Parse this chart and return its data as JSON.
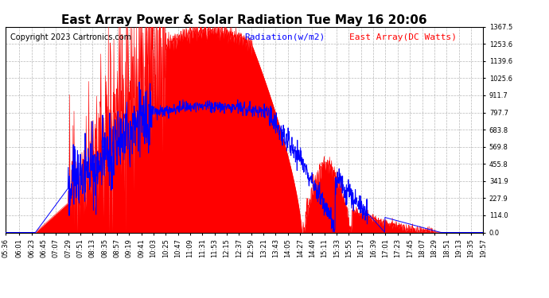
{
  "title": "East Array Power & Solar Radiation Tue May 16 20:06",
  "copyright": "Copyright 2023 Cartronics.com",
  "legend_radiation": "Radiation(w/m2)",
  "legend_east": "East Array(DC Watts)",
  "ylabel_right_ticks": [
    0.0,
    114.0,
    227.9,
    341.9,
    455.8,
    569.8,
    683.8,
    797.7,
    911.7,
    1025.6,
    1139.6,
    1253.6,
    1367.5
  ],
  "ymax": 1367.5,
  "ymin": 0.0,
  "x_labels": [
    "05:36",
    "06:01",
    "06:23",
    "06:45",
    "07:07",
    "07:29",
    "07:51",
    "08:13",
    "08:35",
    "08:57",
    "09:19",
    "09:41",
    "10:03",
    "10:25",
    "10:47",
    "11:09",
    "11:31",
    "11:53",
    "12:15",
    "12:37",
    "12:59",
    "13:21",
    "13:43",
    "14:05",
    "14:27",
    "14:49",
    "15:11",
    "15:33",
    "15:55",
    "16:17",
    "16:39",
    "17:01",
    "17:23",
    "17:45",
    "18:07",
    "18:29",
    "18:51",
    "19:13",
    "19:35",
    "19:57"
  ],
  "radiation_color": "#ff0000",
  "array_line_color": "#0000ff",
  "background_color": "#ffffff",
  "grid_color": "#b0b0b0",
  "title_color": "#000000",
  "title_fontsize": 11,
  "copyright_fontsize": 7,
  "legend_fontsize": 8,
  "tick_fontsize": 6,
  "fig_width": 6.9,
  "fig_height": 3.75,
  "dpi": 100
}
